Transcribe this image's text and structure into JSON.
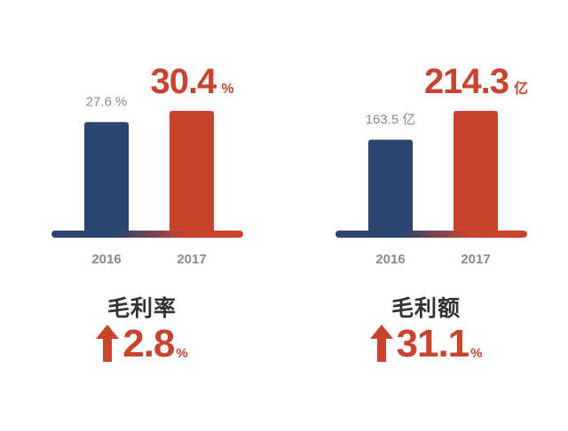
{
  "colors": {
    "bar_2016": "#2c4670",
    "bar_2017": "#c8442e",
    "label_2016": "#8a8a8a",
    "label_2017": "#c8442e",
    "axis_label": "#8a8a8a",
    "metric_name": "#333333",
    "arrow": "#c8442e"
  },
  "chart_data": [
    {
      "type": "bar",
      "categories": [
        "2016",
        "2017"
      ],
      "values": [
        27.6,
        30.4
      ],
      "value_labels": [
        {
          "value": "27.6",
          "unit": "%"
        },
        {
          "value": "30.4",
          "unit": "%"
        }
      ],
      "title": "毛利率",
      "ylim": [
        0,
        30.4
      ],
      "grid": false,
      "change": {
        "value": "2.8",
        "unit": "%",
        "direction": "up",
        "icon": "arrow-up-icon"
      }
    },
    {
      "type": "bar",
      "categories": [
        "2016",
        "2017"
      ],
      "values": [
        163.5,
        214.3
      ],
      "value_labels": [
        {
          "value": "163.5",
          "unit": "亿"
        },
        {
          "value": "214.3",
          "unit": "亿"
        }
      ],
      "title": "毛利额",
      "ylim": [
        0,
        214.3
      ],
      "grid": false,
      "change": {
        "value": "31.1",
        "unit": "%",
        "direction": "up",
        "icon": "arrow-up-icon"
      }
    }
  ]
}
